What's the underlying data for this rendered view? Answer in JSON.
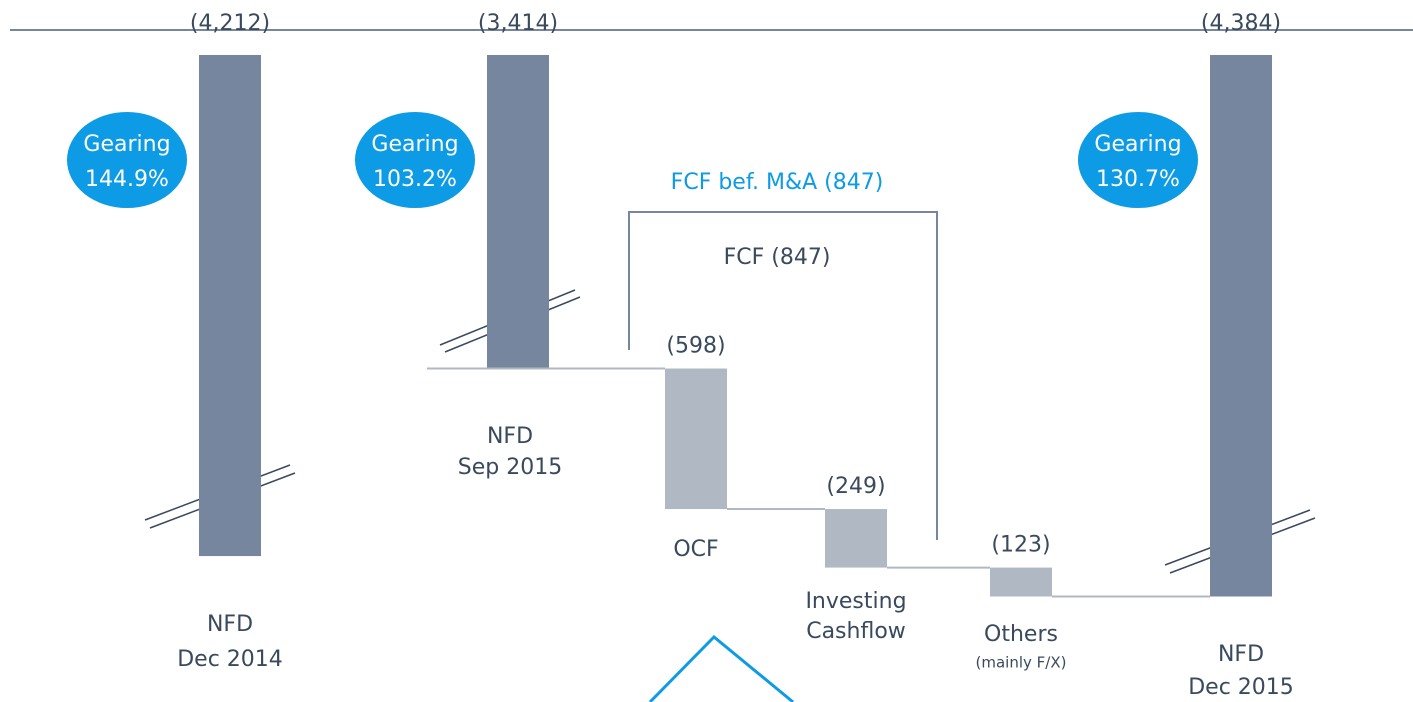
{
  "chart_data": {
    "type": "waterfall",
    "categories": [
      [
        "NFD",
        "Dec 2014"
      ],
      [
        "NFD",
        "Sep 2015"
      ],
      [
        "OCF"
      ],
      [
        "Investing",
        "Cashflow"
      ],
      [
        "Others",
        "(mainly F/X)"
      ],
      [
        "NFD",
        "Dec 2015"
      ]
    ],
    "values": [
      -4212,
      -3414,
      -598,
      -249,
      -123,
      -4384
    ],
    "value_labels": [
      "(4,212)",
      "(3,414)",
      "(598)",
      "(249)",
      "(123)",
      "(4,384)"
    ],
    "measures": [
      "total",
      "total",
      "relative",
      "relative",
      "relative",
      "total"
    ],
    "colors": {
      "total": "#76869e",
      "relative": "#b0b9c3"
    },
    "gearing": [
      [
        "Gearing",
        "144.9%"
      ],
      [
        "Gearing",
        "103.2%"
      ],
      null,
      null,
      null,
      [
        "Gearing",
        "130.7%"
      ]
    ],
    "gearing_color": "#0d9be6",
    "ylim": [
      -2080,
      -4450
    ],
    "brackets": [
      "FCF bef. M&A (847)",
      "FCF (847)"
    ]
  }
}
